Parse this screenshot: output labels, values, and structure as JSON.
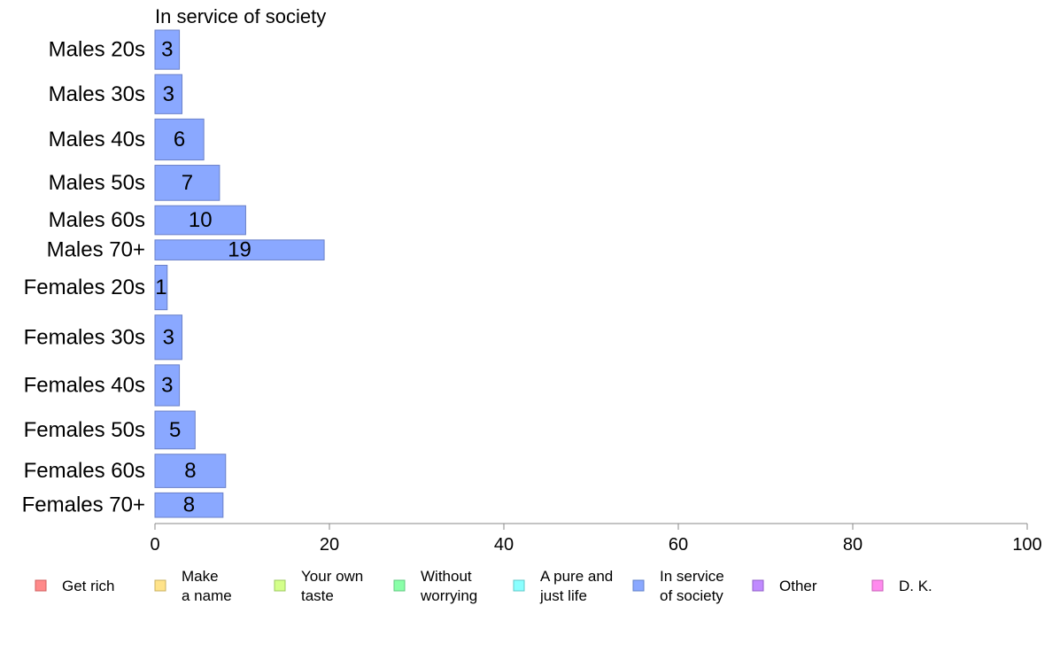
{
  "chart_data": {
    "type": "bar",
    "orientation": "horizontal",
    "title": "In service of society",
    "categories": [
      "Males 20s",
      "Males 30s",
      "Males 40s",
      "Males 50s",
      "Males 60s",
      "Males 70+",
      "Females 20s",
      "Females 30s",
      "Females 40s",
      "Females 50s",
      "Females 60s",
      "Females 70+"
    ],
    "values": [
      3,
      3,
      6,
      7,
      10,
      19,
      1,
      3,
      3,
      5,
      8,
      8
    ],
    "raw_values": [
      2.8,
      3.1,
      5.6,
      7.4,
      10.4,
      19.4,
      1.4,
      3.1,
      2.8,
      4.6,
      8.1,
      7.8
    ],
    "relative_widths": [
      0.88,
      0.88,
      0.92,
      0.79,
      0.65,
      0.45,
      1.0,
      1.0,
      0.92,
      0.85,
      0.75,
      0.55
    ],
    "xlim": [
      0,
      100
    ],
    "xticks": [
      0,
      20,
      40,
      60,
      80,
      100
    ],
    "series_color": "#8aa8ff",
    "series_stroke": "#6a80c8",
    "legend": {
      "placement": "bottom",
      "items": [
        {
          "lines": [
            "Get rich"
          ],
          "color": "#ff8a8a",
          "stroke": "#d06060"
        },
        {
          "lines": [
            "Make",
            "a name"
          ],
          "color": "#ffe38a",
          "stroke": "#c8b060"
        },
        {
          "lines": [
            "Your own",
            "taste"
          ],
          "color": "#d4ff8a",
          "stroke": "#9cc860"
        },
        {
          "lines": [
            "Without",
            "worrying"
          ],
          "color": "#8affa8",
          "stroke": "#60c880"
        },
        {
          "lines": [
            "A pure and",
            "just life"
          ],
          "color": "#8affff",
          "stroke": "#60c8c8"
        },
        {
          "lines": [
            "In service",
            "of society"
          ],
          "color": "#8aa8ff",
          "stroke": "#6080c8"
        },
        {
          "lines": [
            "Other"
          ],
          "color": "#c08aff",
          "stroke": "#9060c8"
        },
        {
          "lines": [
            "D. K."
          ],
          "color": "#ff8aee",
          "stroke": "#c860b8"
        }
      ]
    }
  }
}
